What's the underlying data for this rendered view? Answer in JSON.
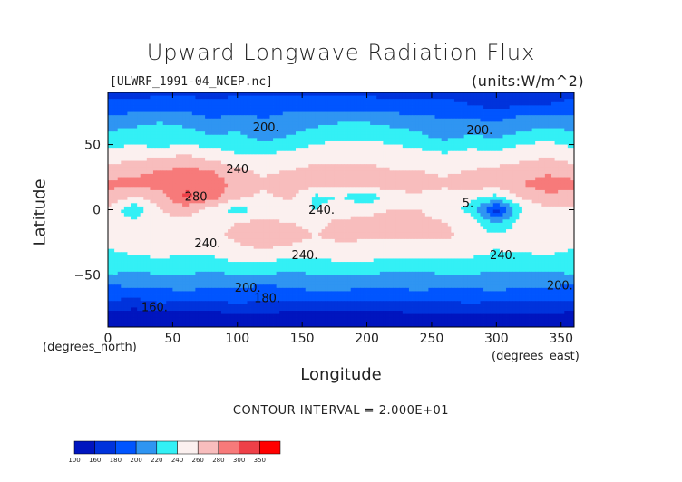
{
  "chart_data": {
    "type": "heatmap",
    "title": "Upward Longwave Radiation Flux",
    "subtitle_left": "[ULWRF_1991-04_NCEP.nc]",
    "subtitle_right": "(units:W/m^2)",
    "xlabel": "Longitude",
    "ylabel": "Latitude",
    "x_unit_label": "(degrees_east)",
    "y_unit_label": "(degrees_north)",
    "xlim": [
      0,
      360
    ],
    "ylim": [
      -90,
      90
    ],
    "x_ticks": [
      0,
      50,
      100,
      150,
      200,
      250,
      300,
      350
    ],
    "y_ticks": [
      -50,
      0,
      50
    ],
    "contour_interval_text": "CONTOUR INTERVAL = 2.000E+01",
    "contour_labels": [
      {
        "text": "200.",
        "lon": 122,
        "lat": 60
      },
      {
        "text": "200.",
        "lon": 287,
        "lat": 58
      },
      {
        "text": "240",
        "lon": 100,
        "lat": 28
      },
      {
        "text": "280",
        "lon": 68,
        "lat": 7
      },
      {
        "text": "240.",
        "lon": 165,
        "lat": -3
      },
      {
        "text": "240.",
        "lon": 77,
        "lat": -29
      },
      {
        "text": "240.",
        "lon": 152,
        "lat": -38
      },
      {
        "text": "240.",
        "lon": 305,
        "lat": -38
      },
      {
        "text": "200.",
        "lon": 108,
        "lat": -63
      },
      {
        "text": "180.",
        "lon": 123,
        "lat": -71
      },
      {
        "text": "200.",
        "lon": 349,
        "lat": -61
      },
      {
        "text": "160.",
        "lon": 36,
        "lat": -78
      },
      {
        "text": "5.",
        "lon": 278,
        "lat": 2
      }
    ],
    "colorbar": {
      "labels": [
        "100",
        "160",
        "180",
        "200",
        "220",
        "240",
        "260",
        "280",
        "300",
        "350"
      ],
      "colors": [
        "#0015bf",
        "#0033dc",
        "#0055ff",
        "#2f95f2",
        "#33f0f5",
        "#fbf0ef",
        "#f8bdbd",
        "#f77a7a",
        "#ee4048",
        "#ff0000"
      ]
    },
    "data": {
      "levels": [
        160,
        180,
        200,
        220,
        240,
        260,
        280,
        300,
        350
      ],
      "lats": [
        90,
        80,
        70,
        60,
        50,
        40,
        30,
        20,
        10,
        0,
        -10,
        -20,
        -30,
        -40,
        -50,
        -60,
        -70,
        -80,
        -90
      ],
      "lons": [
        0,
        20,
        40,
        60,
        80,
        100,
        120,
        140,
        160,
        180,
        200,
        220,
        240,
        260,
        280,
        300,
        320,
        340,
        360
      ],
      "values": [
        [
          175,
          175,
          175,
          175,
          175,
          175,
          175,
          175,
          175,
          175,
          175,
          175,
          175,
          175,
          175,
          175,
          175,
          175,
          175
        ],
        [
          185,
          185,
          190,
          190,
          185,
          190,
          190,
          195,
          190,
          190,
          190,
          185,
          185,
          185,
          180,
          175,
          180,
          180,
          185
        ],
        [
          205,
          210,
          215,
          210,
          200,
          205,
          200,
          205,
          210,
          215,
          215,
          210,
          205,
          200,
          200,
          195,
          205,
          210,
          205
        ],
        [
          220,
          225,
          230,
          225,
          215,
          220,
          205,
          215,
          225,
          230,
          230,
          225,
          220,
          200,
          215,
          210,
          220,
          225,
          220
        ],
        [
          235,
          240,
          235,
          240,
          235,
          230,
          225,
          230,
          240,
          245,
          245,
          240,
          235,
          230,
          235,
          230,
          240,
          245,
          235
        ],
        [
          250,
          255,
          260,
          265,
          255,
          245,
          245,
          250,
          255,
          255,
          255,
          255,
          250,
          245,
          250,
          250,
          255,
          260,
          250
        ],
        [
          270,
          275,
          280,
          285,
          280,
          265,
          255,
          260,
          265,
          265,
          265,
          260,
          260,
          255,
          260,
          265,
          270,
          275,
          270
        ],
        [
          285,
          285,
          290,
          295,
          295,
          270,
          265,
          275,
          270,
          270,
          270,
          275,
          270,
          265,
          275,
          270,
          280,
          290,
          285
        ],
        [
          275,
          260,
          270,
          305,
          290,
          265,
          255,
          265,
          235,
          240,
          225,
          250,
          255,
          250,
          245,
          235,
          265,
          275,
          275
        ],
        [
          255,
          225,
          260,
          270,
          250,
          230,
          250,
          245,
          240,
          250,
          255,
          260,
          260,
          245,
          235,
          170,
          240,
          255,
          255
        ],
        [
          250,
          245,
          255,
          250,
          255,
          260,
          265,
          260,
          255,
          265,
          265,
          270,
          270,
          260,
          255,
          215,
          250,
          260,
          250
        ],
        [
          245,
          250,
          260,
          255,
          255,
          265,
          275,
          270,
          260,
          265,
          265,
          265,
          265,
          265,
          250,
          245,
          250,
          255,
          245
        ],
        [
          240,
          245,
          250,
          245,
          245,
          255,
          260,
          255,
          250,
          255,
          250,
          250,
          250,
          250,
          250,
          240,
          245,
          245,
          240
        ],
        [
          230,
          235,
          235,
          235,
          235,
          240,
          240,
          235,
          235,
          240,
          240,
          235,
          235,
          235,
          235,
          235,
          230,
          235,
          230
        ],
        [
          220,
          215,
          220,
          220,
          215,
          220,
          220,
          215,
          220,
          220,
          220,
          215,
          215,
          220,
          220,
          215,
          215,
          215,
          220
        ],
        [
          195,
          200,
          200,
          205,
          200,
          200,
          195,
          200,
          205,
          205,
          200,
          200,
          205,
          200,
          200,
          205,
          200,
          200,
          195
        ],
        [
          180,
          175,
          185,
          180,
          180,
          185,
          180,
          180,
          180,
          180,
          180,
          180,
          180,
          180,
          185,
          180,
          180,
          180,
          180
        ],
        [
          155,
          150,
          155,
          150,
          155,
          160,
          160,
          155,
          155,
          155,
          155,
          155,
          160,
          160,
          160,
          160,
          160,
          160,
          155
        ],
        [
          150,
          150,
          150,
          150,
          150,
          150,
          150,
          150,
          150,
          150,
          150,
          150,
          150,
          150,
          150,
          150,
          150,
          150,
          150
        ]
      ]
    }
  }
}
